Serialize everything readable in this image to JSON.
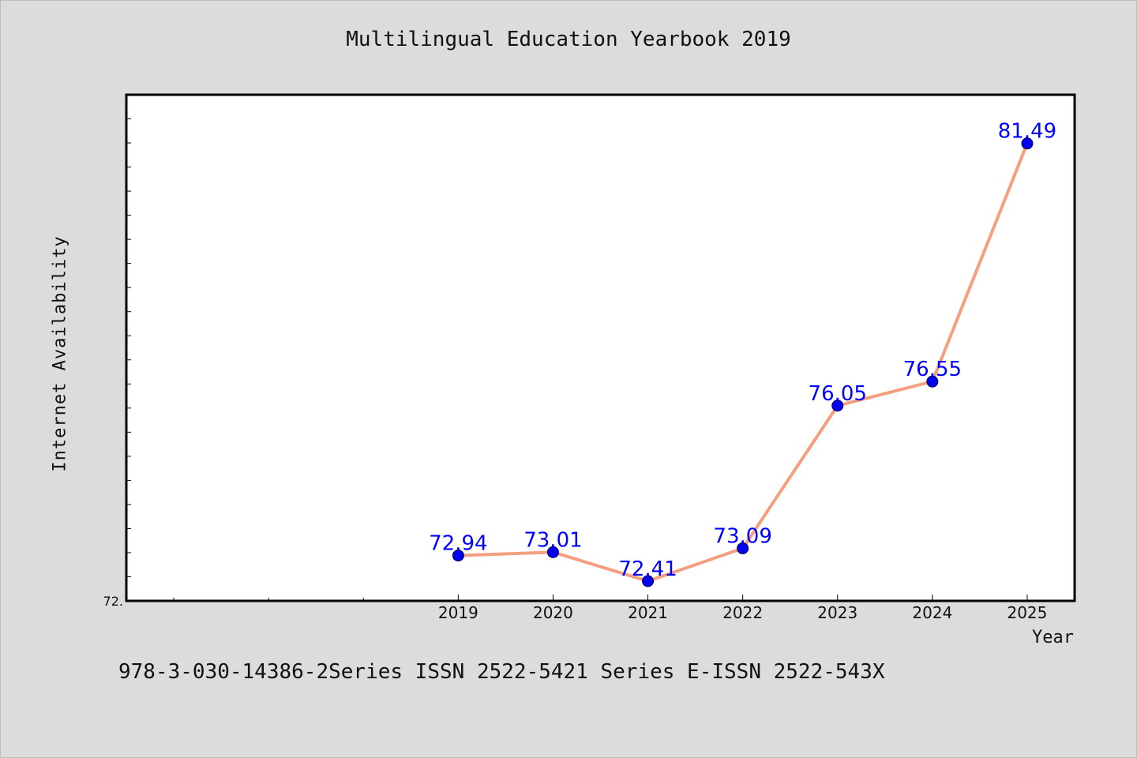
{
  "chart_data": {
    "type": "line",
    "title": "Multilingual Education Yearbook 2019",
    "xlabel": "Year",
    "ylabel": "Internet Availability",
    "x": [
      "2019",
      "2020",
      "2021",
      "2022",
      "2023",
      "2024",
      "2025"
    ],
    "values": [
      72.94,
      73.01,
      72.41,
      73.09,
      76.05,
      76.55,
      81.49
    ],
    "data_labels": [
      "72.94",
      "73.01",
      "72.41",
      "73.09",
      "76.05",
      "76.55",
      "81.49"
    ],
    "y_tick_labels": [
      "72."
    ],
    "ylim": [
      72.0,
      82.5
    ],
    "grid": false,
    "legend": "none",
    "colors": {
      "line": "#f4a07f",
      "marker": "#0000ee",
      "data_label": "#0000ff",
      "axis": "#000000",
      "background": "#dcdcdc",
      "plot_background": "#ffffff"
    }
  },
  "footnote": "978-3-030-14386-2Series ISSN 2522-5421 Series E-ISSN 2522-543X"
}
